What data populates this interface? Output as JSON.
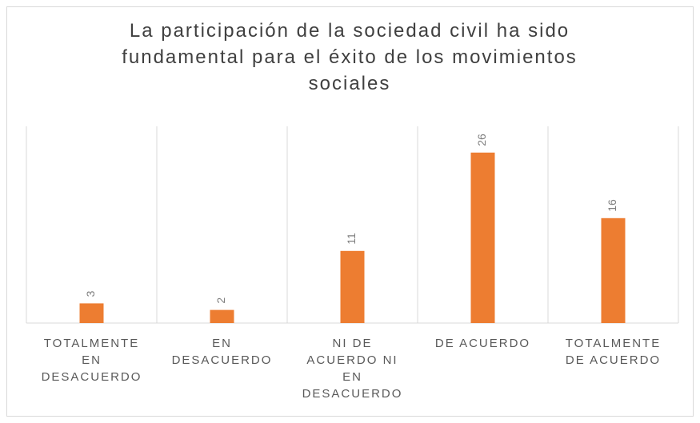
{
  "chart_data": {
    "type": "bar",
    "title": "La participación de la sociedad civil ha sido fundamental para el éxito de los movimientos sociales",
    "categories": [
      "TOTALMENTE EN DESACUERDO",
      "EN DESACUERDO",
      "NI DE ACUERDO NI EN DESACUERDO",
      "DE ACUERDO",
      "TOTALMENTE DE ACUERDO"
    ],
    "values": [
      3,
      2,
      11,
      26,
      16
    ],
    "color": "#ed7d31",
    "ylim": [
      0,
      30
    ]
  }
}
